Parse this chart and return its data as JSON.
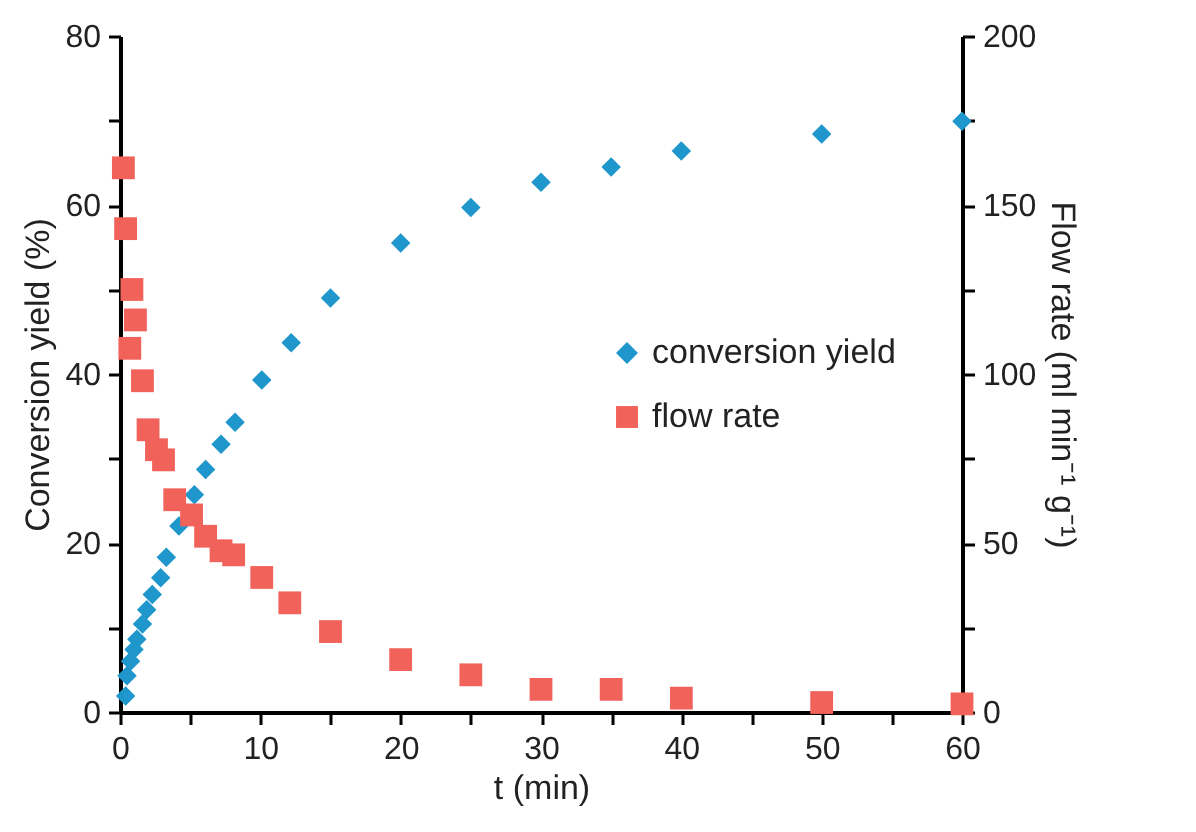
{
  "chart_data": {
    "type": "scatter",
    "xlabel": "t (min)",
    "ylabel": "Conversion yield  (%)",
    "y2label": "Flow rate  (ml min⁻¹ g⁻¹)",
    "xlim": [
      0,
      60
    ],
    "xticks": [
      0,
      {
        "value": 5,
        "label": null
      },
      10,
      {
        "value": 15,
        "label": null
      },
      20,
      {
        "value": 25,
        "label": null
      },
      30,
      {
        "value": 35,
        "label": null
      },
      40,
      {
        "value": 45,
        "label": null
      },
      50,
      {
        "value": 55,
        "label": null
      },
      60
    ],
    "ylim": [
      0,
      80
    ],
    "yticks": [
      0,
      {
        "value": 10,
        "label": null
      },
      20,
      {
        "value": 30,
        "label": null
      },
      40,
      {
        "value": 50,
        "label": null
      },
      60,
      {
        "value": 70,
        "label": null
      },
      80
    ],
    "y2lim": [
      0,
      200
    ],
    "y2ticks": [
      0,
      {
        "value": 25,
        "label": null
      },
      50,
      {
        "value": 75,
        "label": null
      },
      100,
      {
        "value": 125,
        "label": null
      },
      150,
      {
        "value": 175,
        "label": null
      },
      200
    ],
    "legend": "right",
    "grid": false,
    "series": [
      {
        "name": "conversion yield",
        "color": "#1f96cc",
        "marker": "diamond",
        "x": [
          0.4,
          0.5,
          0.75,
          1.0,
          1.2,
          1.6,
          1.9,
          2.3,
          2.9,
          3.3,
          4.2,
          5.3,
          6.1,
          7.2,
          8.2,
          10.1,
          12.2,
          15,
          20,
          25,
          30,
          35,
          40,
          50,
          60
        ],
        "values": [
          1.9,
          4.3,
          6.0,
          7.4,
          8.6,
          10.4,
          12.1,
          13.9,
          15.9,
          18.3,
          22,
          25.7,
          28.7,
          31.7,
          34.3,
          39.3,
          43.7,
          49,
          55.5,
          59.7,
          62.7,
          64.5,
          66.4,
          68.4,
          69.9
        ]
      },
      {
        "name": "flow rate",
        "color": "#f0625a",
        "marker": "square",
        "axis": "y2",
        "x": [
          0.24,
          0.4,
          0.7,
          0.85,
          1.1,
          1.6,
          2.0,
          2.6,
          3.1,
          3.9,
          5.1,
          6.1,
          7.2,
          8.1,
          10.1,
          12.1,
          15,
          20,
          25,
          30,
          35,
          40,
          50,
          60
        ],
        "values": [
          161,
          143,
          107.6,
          125,
          116,
          98,
          83.5,
          77.6,
          74.6,
          62.8,
          58.3,
          52,
          47.7,
          46.5,
          39.8,
          32.3,
          23.8,
          15.5,
          11,
          6.7,
          6.7,
          4.1,
          2.8,
          2.4
        ]
      }
    ]
  }
}
